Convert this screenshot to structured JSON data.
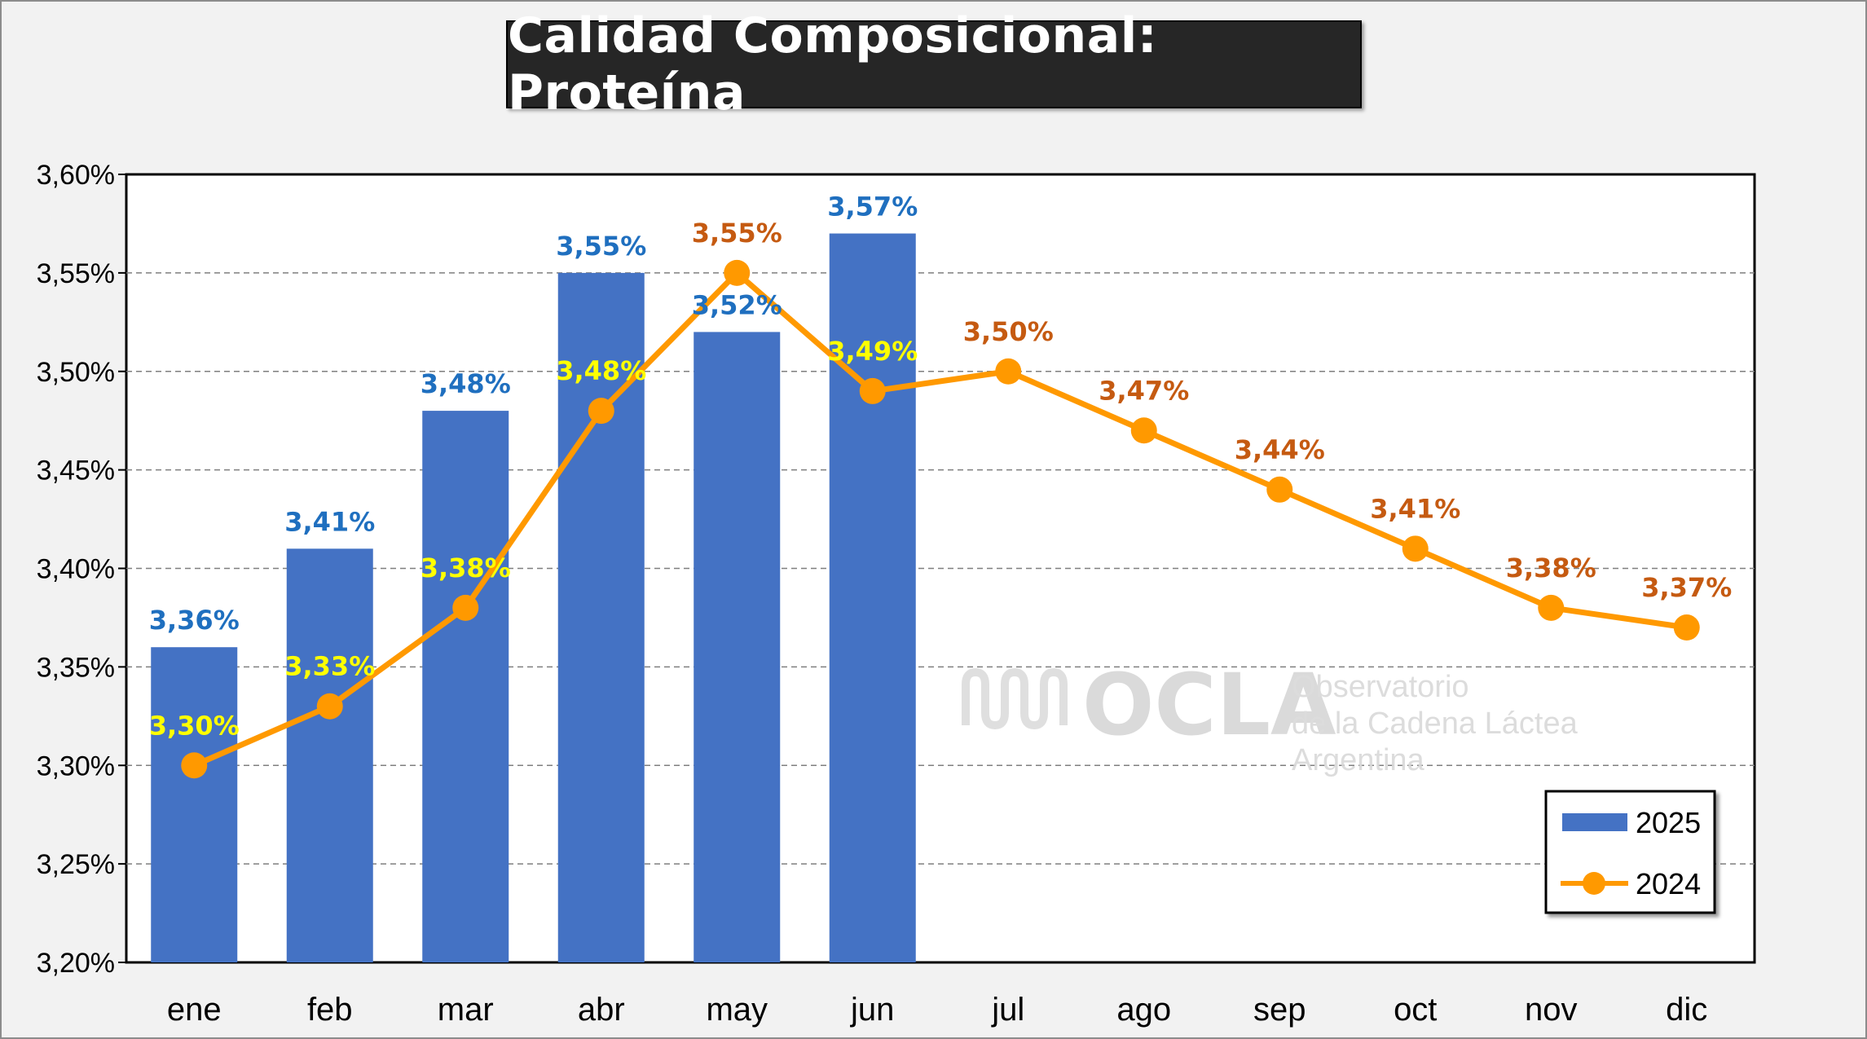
{
  "title": "Calidad Composicional: Proteína",
  "chart_data": {
    "type": "bar",
    "title": "Calidad Composicional: Proteína",
    "xlabel": "",
    "ylabel": "",
    "ylim": [
      3.2,
      3.6
    ],
    "yticks": [
      "3,20%",
      "3,25%",
      "3,30%",
      "3,35%",
      "3,40%",
      "3,45%",
      "3,50%",
      "3,55%",
      "3,60%"
    ],
    "ytick_values": [
      3.2,
      3.25,
      3.3,
      3.35,
      3.4,
      3.45,
      3.5,
      3.55,
      3.6
    ],
    "grid": true,
    "legend_position": "bottom-right",
    "categories": [
      "ene",
      "feb",
      "mar",
      "abr",
      "may",
      "jun",
      "jul",
      "ago",
      "sep",
      "oct",
      "nov",
      "dic"
    ],
    "series": [
      {
        "name": "2025",
        "type": "bar",
        "color": "#4472c4",
        "label_color": "#1f6fbf",
        "values": [
          3.36,
          3.41,
          3.48,
          3.55,
          3.52,
          3.57,
          null,
          null,
          null,
          null,
          null,
          null
        ],
        "labels": [
          "3,36%",
          "3,41%",
          "3,48%",
          "3,55%",
          "3,52%",
          "3,57%",
          "",
          "",
          "",
          "",
          "",
          ""
        ]
      },
      {
        "name": "2024",
        "type": "line",
        "color": "#ff9900",
        "label_color_overlap": "#ffff00",
        "label_color": "#c55a11",
        "values": [
          3.3,
          3.33,
          3.38,
          3.48,
          3.55,
          3.49,
          3.5,
          3.47,
          3.44,
          3.41,
          3.38,
          3.37
        ],
        "labels": [
          "3,30%",
          "3,33%",
          "3,38%",
          "3,48%",
          "3,55%",
          "3,49%",
          "3,50%",
          "3,47%",
          "3,44%",
          "3,41%",
          "3,38%",
          "3,37%"
        ]
      }
    ]
  },
  "watermark": {
    "brand": "OCLA",
    "line1": "Observatorio",
    "line2": "de la Cadena Láctea",
    "line3": "Argentina"
  }
}
